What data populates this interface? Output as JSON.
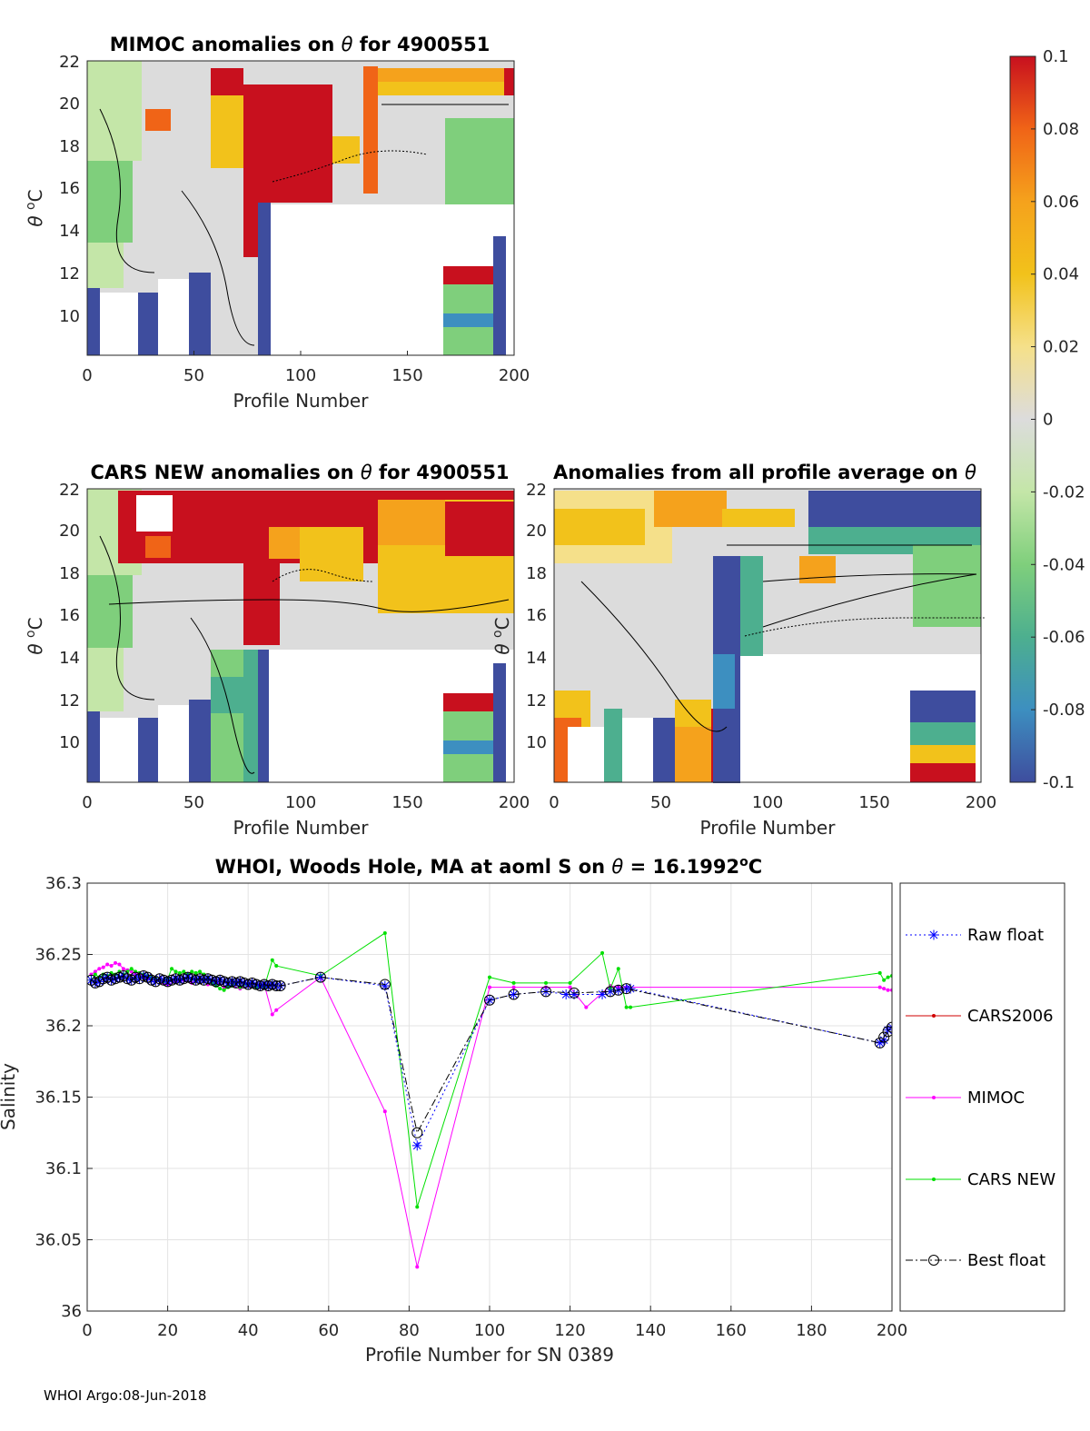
{
  "chart_data": [
    {
      "type": "heatmap",
      "id": "mimoc",
      "title_main": "MIMOC anomalies on ",
      "title_theta": "θ",
      "title_tail": "  for 4900551",
      "xlabel": "Profile Number",
      "ylabel_theta": "θ",
      "ylabel_unit": "C",
      "ylabel_sup": "o",
      "xlim": [
        0,
        200
      ],
      "ylim": [
        8.2,
        22
      ],
      "xticks": [
        0,
        50,
        100,
        150,
        200
      ],
      "yticks": [
        10,
        12,
        14,
        16,
        18,
        20,
        22
      ]
    },
    {
      "type": "heatmap",
      "id": "cars",
      "title_main": "CARS NEW anomalies on ",
      "title_theta": "θ",
      "title_tail": " for 4900551",
      "xlabel": "Profile Number",
      "ylabel_theta": "θ",
      "ylabel_unit": "C",
      "ylabel_sup": "o",
      "xlim": [
        0,
        200
      ],
      "ylim": [
        8.2,
        22
      ],
      "xticks": [
        0,
        50,
        100,
        150,
        200
      ],
      "yticks": [
        10,
        12,
        14,
        16,
        18,
        20,
        22
      ]
    },
    {
      "type": "heatmap",
      "id": "avg",
      "title_main": "Anomalies from all profile average on ",
      "title_theta": "θ",
      "title_tail": "",
      "xlabel": "Profile Number",
      "ylabel_theta": "θ",
      "ylabel_unit": "C",
      "ylabel_sup": "o",
      "xlim": [
        0,
        200
      ],
      "ylim": [
        8.2,
        22
      ],
      "xticks": [
        0,
        50,
        100,
        150,
        200
      ],
      "yticks": [
        10,
        12,
        14,
        16,
        18,
        20,
        22
      ]
    },
    {
      "type": "colorbar",
      "id": "colorbar",
      "range": [
        -0.1,
        0.1
      ],
      "tick_labels": [
        "0.1",
        "0.08",
        "0.06",
        "0.04",
        "0.02",
        "0",
        "-0.02",
        "-0.04",
        "-0.06",
        "-0.08",
        "-0.1"
      ],
      "colors": [
        "#3e4d9e",
        "#3d8fc0",
        "#4daf8f",
        "#7fcf7c",
        "#c4e6a8",
        "#dcdcdc",
        "#f5e08a",
        "#f2c21b",
        "#f5a21c",
        "#f06417",
        "#c8101e"
      ]
    },
    {
      "type": "line",
      "id": "salinity",
      "title_main": "WHOI, Woods Hole, MA at aoml S on ",
      "title_theta": "θ",
      "title_tail": " = 16.1992",
      "title_sup": "o",
      "title_unit": "C",
      "xlabel": "Profile Number for SN 0389",
      "ylabel": "Salinity",
      "xlim": [
        0,
        200
      ],
      "ylim": [
        36,
        36.3
      ],
      "xticks": [
        0,
        20,
        40,
        60,
        80,
        100,
        120,
        140,
        160,
        180,
        200
      ],
      "ytick_labels": [
        "36",
        "36.05",
        "36.1",
        "36.15",
        "36.2",
        "36.25",
        "36.3"
      ],
      "ytick_values": [
        36,
        36.05,
        36.1,
        36.15,
        36.2,
        36.25,
        36.3
      ],
      "grid": true,
      "legend_position": "outside-right",
      "series": [
        {
          "name": "Raw float",
          "color": "#0000ff",
          "style": "dotted",
          "marker": "asterisk",
          "x": [
            1,
            2,
            3,
            4,
            5,
            6,
            7,
            8,
            9,
            10,
            11,
            12,
            13,
            14,
            15,
            16,
            17,
            18,
            19,
            20,
            21,
            22,
            23,
            24,
            25,
            26,
            27,
            28,
            29,
            30,
            31,
            32,
            33,
            34,
            35,
            36,
            37,
            38,
            39,
            40,
            41,
            42,
            43,
            44,
            45,
            46,
            47,
            48,
            58,
            74,
            82,
            100,
            106,
            114,
            119,
            121,
            128,
            130,
            132,
            134,
            135,
            197,
            198,
            199,
            200
          ],
          "y": [
            36.232,
            36.23,
            36.231,
            36.233,
            36.234,
            36.232,
            36.233,
            36.234,
            36.235,
            36.233,
            36.232,
            36.234,
            36.233,
            36.235,
            36.234,
            36.232,
            36.231,
            36.233,
            36.232,
            36.231,
            36.232,
            36.233,
            36.232,
            36.233,
            36.234,
            36.233,
            36.232,
            36.233,
            36.232,
            36.233,
            36.232,
            36.231,
            36.232,
            36.231,
            36.23,
            36.231,
            36.23,
            36.231,
            36.23,
            36.229,
            36.23,
            36.229,
            36.228,
            36.229,
            36.228,
            36.229,
            36.228,
            36.228,
            36.234,
            36.228,
            36.116,
            36.218,
            36.222,
            36.224,
            36.222,
            36.222,
            36.222,
            36.224,
            36.225,
            36.226,
            36.226,
            36.188,
            36.19,
            36.197,
            36.199
          ]
        },
        {
          "name": "CARS2006",
          "color": "#d00000",
          "style": "solid",
          "marker": "dot",
          "x": [],
          "y": []
        },
        {
          "name": "MIMOC",
          "color": "#ff00ff",
          "style": "solid",
          "marker": "dot",
          "x": [
            1,
            2,
            3,
            4,
            5,
            6,
            7,
            8,
            9,
            10,
            11,
            12,
            13,
            14,
            15,
            16,
            17,
            18,
            19,
            20,
            22,
            24,
            26,
            28,
            30,
            32,
            34,
            36,
            38,
            40,
            42,
            44,
            46,
            47,
            58,
            74,
            82,
            100,
            106,
            114,
            120,
            124,
            130,
            132,
            134,
            197,
            198,
            199,
            200
          ],
          "y": [
            36.236,
            36.238,
            36.24,
            36.241,
            36.243,
            36.242,
            36.244,
            36.243,
            36.24,
            36.239,
            36.238,
            36.236,
            36.237,
            36.234,
            36.233,
            36.234,
            36.231,
            36.232,
            36.23,
            36.229,
            36.231,
            36.232,
            36.23,
            36.233,
            36.229,
            36.231,
            36.227,
            36.228,
            36.226,
            36.228,
            36.227,
            36.229,
            36.208,
            36.211,
            36.234,
            36.14,
            36.031,
            36.227,
            36.227,
            36.227,
            36.227,
            36.213,
            36.228,
            36.227,
            36.227,
            36.227,
            36.226,
            36.225,
            36.225
          ]
        },
        {
          "name": "CARS NEW",
          "color": "#00e000",
          "style": "solid",
          "marker": "dot",
          "x": [
            1,
            2,
            3,
            4,
            5,
            6,
            7,
            8,
            9,
            10,
            11,
            12,
            13,
            14,
            15,
            16,
            17,
            18,
            19,
            20,
            21,
            22,
            23,
            24,
            25,
            26,
            27,
            28,
            29,
            30,
            31,
            32,
            33,
            34,
            35,
            36,
            37,
            38,
            40,
            42,
            44,
            46,
            47,
            58,
            74,
            82,
            100,
            106,
            114,
            120,
            128,
            130,
            132,
            134,
            135,
            197,
            198,
            199,
            200
          ],
          "y": [
            36.232,
            36.236,
            36.234,
            36.236,
            36.235,
            36.237,
            36.236,
            36.238,
            36.236,
            36.238,
            36.24,
            36.238,
            36.237,
            36.236,
            36.235,
            36.234,
            36.233,
            36.232,
            36.231,
            36.233,
            36.24,
            36.238,
            36.237,
            36.238,
            36.236,
            36.238,
            36.237,
            36.238,
            36.236,
            36.234,
            36.23,
            36.228,
            36.226,
            36.225,
            36.227,
            36.228,
            36.23,
            36.227,
            36.229,
            36.227,
            36.227,
            36.246,
            36.242,
            36.235,
            36.265,
            36.073,
            36.234,
            36.23,
            36.23,
            36.23,
            36.251,
            36.226,
            36.24,
            36.213,
            36.213,
            36.237,
            36.232,
            36.234,
            36.235
          ]
        },
        {
          "name": "Best float",
          "color": "#000000",
          "style": "dashdot",
          "marker": "circle",
          "x": [
            1,
            2,
            3,
            4,
            5,
            6,
            7,
            8,
            9,
            10,
            11,
            12,
            13,
            14,
            15,
            16,
            17,
            18,
            19,
            20,
            21,
            22,
            23,
            24,
            25,
            26,
            27,
            28,
            29,
            30,
            31,
            32,
            33,
            34,
            35,
            36,
            37,
            38,
            39,
            40,
            41,
            42,
            43,
            44,
            45,
            46,
            47,
            48,
            58,
            74,
            82,
            100,
            106,
            114,
            121,
            130,
            132,
            134,
            197,
            198,
            199,
            200
          ],
          "y": [
            36.232,
            36.23,
            36.231,
            36.233,
            36.234,
            36.232,
            36.233,
            36.234,
            36.235,
            36.233,
            36.232,
            36.234,
            36.233,
            36.235,
            36.234,
            36.232,
            36.231,
            36.233,
            36.232,
            36.231,
            36.232,
            36.233,
            36.232,
            36.233,
            36.234,
            36.233,
            36.232,
            36.233,
            36.232,
            36.233,
            36.232,
            36.231,
            36.232,
            36.231,
            36.23,
            36.231,
            36.23,
            36.231,
            36.23,
            36.229,
            36.23,
            36.229,
            36.228,
            36.229,
            36.228,
            36.229,
            36.228,
            36.228,
            36.234,
            36.229,
            36.125,
            36.218,
            36.222,
            36.224,
            36.223,
            36.224,
            36.225,
            36.226,
            36.188,
            36.192,
            36.196,
            36.199
          ]
        }
      ]
    }
  ],
  "footer": "WHOI Argo:08-Jun-2018"
}
